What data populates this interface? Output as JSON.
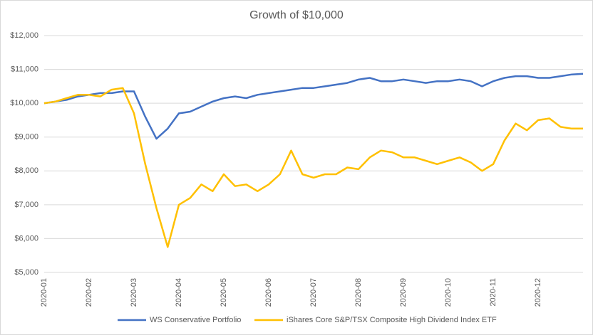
{
  "chart_data": {
    "type": "line",
    "title": "Growth of $10,000",
    "categories": [
      "2020-01",
      null,
      null,
      null,
      "2020-02",
      null,
      null,
      null,
      "2020-03",
      null,
      null,
      null,
      "2020-04",
      null,
      null,
      null,
      "2020-05",
      null,
      null,
      null,
      "2020-06",
      null,
      null,
      null,
      "2020-07",
      null,
      null,
      null,
      "2020-08",
      null,
      null,
      null,
      "2020-09",
      null,
      null,
      null,
      "2020-10",
      null,
      null,
      null,
      "2020-11",
      null,
      null,
      null,
      "2020-12",
      null,
      null,
      null,
      null
    ],
    "series": [
      {
        "name": "WS Conservative Portfolio",
        "color": "#4472c4",
        "values": [
          10000,
          10050,
          10100,
          10200,
          10250,
          10300,
          10300,
          10350,
          10350,
          9600,
          8950,
          9250,
          9700,
          9750,
          9900,
          10050,
          10150,
          10200,
          10150,
          10250,
          10300,
          10350,
          10400,
          10450,
          10450,
          10500,
          10550,
          10600,
          10700,
          10750,
          10650,
          10650,
          10700,
          10650,
          10600,
          10650,
          10650,
          10700,
          10650,
          10500,
          10650,
          10750,
          10800,
          10800,
          10750,
          10750,
          10800,
          10850,
          10870
        ]
      },
      {
        "name": "iShares Core S&P/TSX Composite High Dividend Index ETF",
        "color": "#ffc000",
        "values": [
          10000,
          10050,
          10150,
          10250,
          10250,
          10200,
          10400,
          10450,
          9700,
          8200,
          6900,
          5750,
          7000,
          7200,
          7600,
          7400,
          7900,
          7550,
          7600,
          7400,
          7600,
          7900,
          8600,
          7900,
          7800,
          7900,
          7900,
          8100,
          8050,
          8400,
          8600,
          8550,
          8400,
          8400,
          8300,
          8200,
          8300,
          8400,
          8250,
          8000,
          8200,
          8900,
          9400,
          9200,
          9500,
          9550,
          9300,
          9250,
          9250
        ]
      }
    ],
    "ylim": [
      5000,
      12000
    ],
    "yticks": [
      {
        "value": 5000,
        "label": "$5,000"
      },
      {
        "value": 6000,
        "label": "$6,000"
      },
      {
        "value": 7000,
        "label": "$7,000"
      },
      {
        "value": 8000,
        "label": "$8,000"
      },
      {
        "value": 9000,
        "label": "$9,000"
      },
      {
        "value": 10000,
        "label": "$10,000"
      },
      {
        "value": 11000,
        "label": "$11,000"
      },
      {
        "value": 12000,
        "label": "$12,000"
      }
    ],
    "grid": true,
    "legend": "bottom"
  }
}
